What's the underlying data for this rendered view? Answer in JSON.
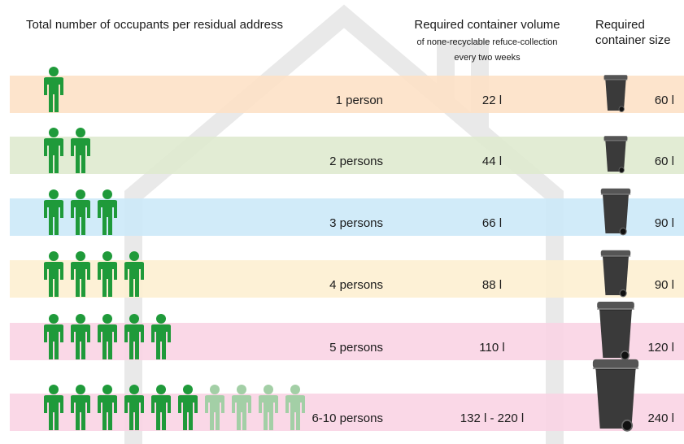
{
  "header": {
    "title": "Total number of occupants per residual address",
    "volume_title": "Required container volume",
    "volume_subtitle": [
      "of none-recyclable refuce-collection",
      "every two weeks"
    ],
    "size_title": [
      "Required",
      "container size"
    ]
  },
  "rows": [
    {
      "occupants": "1 person",
      "volume": "22 l",
      "size": "60 l"
    },
    {
      "occupants": "2 persons",
      "volume": "44 l",
      "size": "60 l"
    },
    {
      "occupants": "3 persons",
      "volume": "66 l",
      "size": "90 l"
    },
    {
      "occupants": "4 persons",
      "volume": "88 l",
      "size": "90 l"
    },
    {
      "occupants": "5 persons",
      "volume": "110 l",
      "size": "120 l"
    },
    {
      "occupants": "6-10 persons",
      "volume": "132 l - 220 l",
      "size": "240 l"
    }
  ]
}
